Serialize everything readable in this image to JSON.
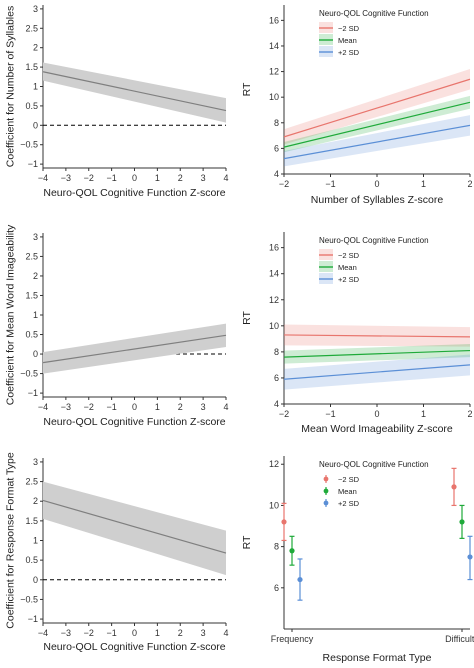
{
  "colors": {
    "band": "#cfcfcf",
    "coef_line": "#7f7f7f",
    "minus2sd": "#e8756d",
    "mean": "#1faa3a",
    "plus2sd": "#5b8fd6",
    "axis": "#333333"
  },
  "chart_data": [
    {
      "id": "coef-syllables",
      "type": "line",
      "xlabel": "Neuro-QOL Cognitive Function Z-score",
      "ylabel": "Coefficient for Number of Syllables",
      "xlim": [
        -4,
        4
      ],
      "ylim": [
        -1.1,
        3.1
      ],
      "xticks": [
        -4,
        -3,
        -2,
        -1,
        0,
        1,
        2,
        3,
        4
      ],
      "yticks": [
        -1.0,
        -0.5,
        0.0,
        0.5,
        1.0,
        1.5,
        2.0,
        2.5,
        3.0
      ],
      "reference_line": 0,
      "series": [
        {
          "x": [
            -4,
            4
          ],
          "y": [
            1.38,
            0.38
          ],
          "lower": [
            1.15,
            0.07
          ],
          "upper": [
            1.62,
            0.7
          ]
        }
      ]
    },
    {
      "id": "rt-syllables",
      "type": "line",
      "xlabel": "Number of Syllables Z-score",
      "ylabel": "RT",
      "xlim": [
        -2,
        2
      ],
      "ylim": [
        4,
        17.2
      ],
      "xticks": [
        -2,
        -1,
        0,
        1,
        2
      ],
      "yticks": [
        4,
        6,
        8,
        10,
        12,
        14,
        16
      ],
      "legend_title": "Neuro-QOL Cognitive Function",
      "legend_position": "top-left",
      "series": [
        {
          "name": "−2 SD",
          "color_key": "minus2sd",
          "x": [
            -2,
            2
          ],
          "y": [
            6.9,
            11.4
          ],
          "lower": [
            6.3,
            10.6
          ],
          "upper": [
            7.5,
            12.2
          ]
        },
        {
          "name": "Mean",
          "color_key": "mean",
          "x": [
            -2,
            2
          ],
          "y": [
            6.1,
            9.6
          ],
          "lower": [
            5.7,
            9.1
          ],
          "upper": [
            6.5,
            10.1
          ]
        },
        {
          "name": "+2 SD",
          "color_key": "plus2sd",
          "x": [
            -2,
            2
          ],
          "y": [
            5.2,
            7.8
          ],
          "lower": [
            4.6,
            7.0
          ],
          "upper": [
            5.8,
            8.6
          ]
        }
      ]
    },
    {
      "id": "coef-imageability",
      "type": "line",
      "xlabel": "Neuro-QOL Cognitive Function Z-score",
      "ylabel": "Coefficient for Mean Word Imageability",
      "xlim": [
        -4,
        4
      ],
      "ylim": [
        -1.1,
        3.1
      ],
      "xticks": [
        -4,
        -3,
        -2,
        -1,
        0,
        1,
        2,
        3,
        4
      ],
      "yticks": [
        -1.0,
        -0.5,
        0.0,
        0.5,
        1.0,
        1.5,
        2.0,
        2.5,
        3.0
      ],
      "reference_line": 0,
      "series": [
        {
          "x": [
            -4,
            4
          ],
          "y": [
            -0.22,
            0.48
          ],
          "lower": [
            -0.5,
            0.18
          ],
          "upper": [
            0.05,
            0.78
          ]
        }
      ]
    },
    {
      "id": "rt-imageability",
      "type": "line",
      "xlabel": "Mean Word Imageability Z-score",
      "ylabel": "RT",
      "xlim": [
        -2,
        2
      ],
      "ylim": [
        4,
        17.2
      ],
      "xticks": [
        -2,
        -1,
        0,
        1,
        2
      ],
      "yticks": [
        4,
        6,
        8,
        10,
        12,
        14,
        16
      ],
      "legend_title": "Neuro-QOL Cognitive Function",
      "legend_position": "top-left",
      "series": [
        {
          "name": "−2 SD",
          "color_key": "minus2sd",
          "x": [
            -2,
            2
          ],
          "y": [
            9.3,
            9.15
          ],
          "lower": [
            8.5,
            8.4
          ],
          "upper": [
            10.1,
            9.9
          ]
        },
        {
          "name": "Mean",
          "color_key": "mean",
          "x": [
            -2,
            2
          ],
          "y": [
            7.6,
            8.1
          ],
          "lower": [
            7.1,
            7.6
          ],
          "upper": [
            8.1,
            8.6
          ]
        },
        {
          "name": "+2 SD",
          "color_key": "plus2sd",
          "x": [
            -2,
            2
          ],
          "y": [
            5.9,
            7.0
          ],
          "lower": [
            5.1,
            6.2
          ],
          "upper": [
            6.7,
            7.8
          ]
        }
      ]
    },
    {
      "id": "coef-response-format",
      "type": "line",
      "xlabel": "Neuro-QOL Cognitive Function Z-score",
      "ylabel": "Coefficient for Response Format Type",
      "xlim": [
        -4,
        4
      ],
      "ylim": [
        -1.1,
        3.1
      ],
      "xticks": [
        -4,
        -3,
        -2,
        -1,
        0,
        1,
        2,
        3,
        4
      ],
      "yticks": [
        -1.0,
        -0.5,
        0.0,
        0.5,
        1.0,
        1.5,
        2.0,
        2.5,
        3.0
      ],
      "reference_line": 0,
      "series": [
        {
          "x": [
            -4,
            4
          ],
          "y": [
            2.02,
            0.68
          ],
          "lower": [
            1.55,
            0.12
          ],
          "upper": [
            2.5,
            1.25
          ]
        }
      ]
    },
    {
      "id": "rt-response-format",
      "type": "scatter",
      "xlabel": "Response Format Type",
      "ylabel": "RT",
      "categories": [
        "Frequency",
        "Difficulty"
      ],
      "ylim": [
        4,
        12.4
      ],
      "yticks": [
        6,
        8,
        10,
        12
      ],
      "legend_title": "Neuro-QOL Cognitive Function",
      "legend_position": "top-left",
      "series": [
        {
          "name": "−2 SD",
          "color_key": "minus2sd",
          "values": [
            9.2,
            10.9
          ],
          "lower": [
            8.3,
            10.0
          ],
          "upper": [
            10.1,
            11.8
          ]
        },
        {
          "name": "Mean",
          "color_key": "mean",
          "values": [
            7.8,
            9.2
          ],
          "lower": [
            7.1,
            8.4
          ],
          "upper": [
            8.5,
            10.0
          ]
        },
        {
          "name": "+2 SD",
          "color_key": "plus2sd",
          "values": [
            6.4,
            7.5
          ],
          "lower": [
            5.4,
            6.4
          ],
          "upper": [
            7.4,
            8.5
          ]
        }
      ]
    }
  ]
}
